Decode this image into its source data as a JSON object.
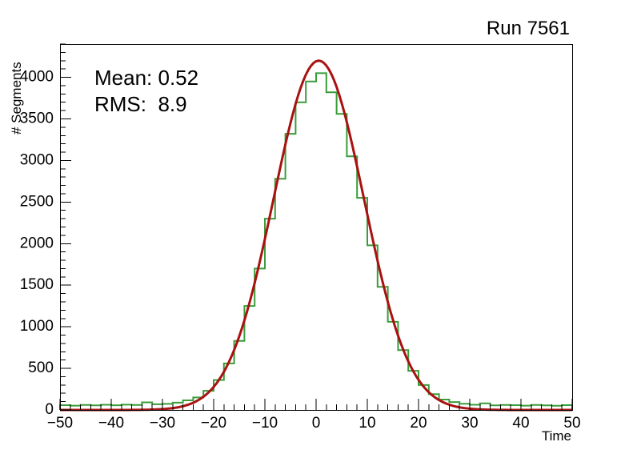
{
  "title": "Run 7561",
  "stats": {
    "mean_label": "Mean: 0.52",
    "rms_label": "RMS:  8.9"
  },
  "chart_data": {
    "type": "bar",
    "subtype": "histogram-with-gaussian-fit",
    "title": "Run 7561",
    "xlabel": "Time",
    "ylabel": "# Segments",
    "xlim": [
      -50,
      50
    ],
    "ylim": [
      0,
      4400
    ],
    "grid": false,
    "legend": "none",
    "x_tick_values": [
      -50,
      -40,
      -30,
      -20,
      -10,
      0,
      10,
      20,
      30,
      40,
      50
    ],
    "x_tick_labels": [
      "−50",
      "−40",
      "−30",
      "−20",
      "−10",
      "0",
      "10",
      "20",
      "30",
      "40",
      "50"
    ],
    "y_tick_values": [
      0,
      500,
      1000,
      1500,
      2000,
      2500,
      3000,
      3500,
      4000
    ],
    "y_tick_labels": [
      "0",
      "500",
      "1000",
      "1500",
      "2000",
      "2500",
      "3000",
      "3500",
      "4000"
    ],
    "x_minor_step": 2,
    "y_minor_step": 100,
    "histogram": {
      "bin_start": -50,
      "bin_width": 2,
      "bin_counts": [
        58,
        52,
        60,
        55,
        62,
        56,
        64,
        60,
        92,
        68,
        74,
        88,
        115,
        150,
        230,
        360,
        560,
        830,
        1250,
        1700,
        2300,
        2780,
        3320,
        3700,
        3950,
        4050,
        3820,
        3560,
        3050,
        2550,
        1980,
        1480,
        1060,
        720,
        470,
        300,
        190,
        125,
        95,
        75,
        62,
        80,
        55,
        60,
        58,
        52,
        60,
        55,
        50,
        58
      ]
    },
    "fit": {
      "type": "gaussian",
      "amplitude": 4200,
      "mean": 0.52,
      "sigma": 8.8
    },
    "annotations": [
      "Mean: 0.52",
      "RMS:  8.9"
    ],
    "colors": {
      "histogram": "#3a9c3a",
      "fit": "#aa1111",
      "axis": "#000000",
      "background": "#ffffff"
    }
  }
}
